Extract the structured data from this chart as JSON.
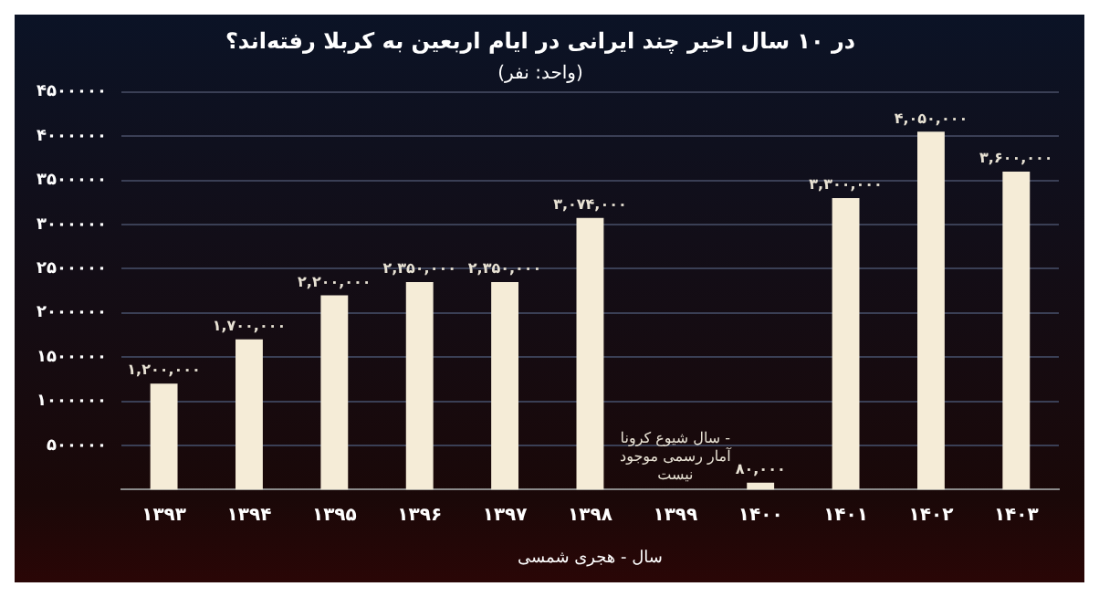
{
  "chart_data": {
    "type": "bar",
    "title": "در ۱۰ سال اخیر چند ایرانی در ایام اربعین به کربلا رفته‌اند؟",
    "subtitle": "(واحد: نفر)",
    "xlabel": "سال - هجری شمسی",
    "categories": [
      "۱۳۹۳",
      "۱۳۹۴",
      "۱۳۹۵",
      "۱۳۹۶",
      "۱۳۹۷",
      "۱۳۹۸",
      "۱۳۹۹",
      "۱۴۰۰",
      "۱۴۰۱",
      "۱۴۰۲",
      "۱۴۰۳"
    ],
    "values": [
      1200000,
      1700000,
      2200000,
      2350000,
      2350000,
      3074000,
      null,
      80000,
      3300000,
      4050000,
      3600000
    ],
    "value_labels": [
      "۱,۲۰۰,۰۰۰",
      "۱,۷۰۰,۰۰۰",
      "۲,۲۰۰,۰۰۰",
      "۲,۳۵۰,۰۰۰",
      "۲,۳۵۰,۰۰۰",
      "۳,۰۷۴,۰۰۰",
      null,
      "۸۰,۰۰۰",
      "۳,۳۰۰,۰۰۰",
      "۴,۰۵۰,۰۰۰",
      "۳,۶۰۰,۰۰۰"
    ],
    "color": "#f5ecd7",
    "ylim": [
      0,
      4500000
    ],
    "yticks": [
      {
        "value": 500000,
        "label": "۵۰۰۰۰۰"
      },
      {
        "value": 1000000,
        "label": "۱۰۰۰۰۰۰"
      },
      {
        "value": 1500000,
        "label": "۱۵۰۰۰۰۰"
      },
      {
        "value": 2000000,
        "label": "۲۰۰۰۰۰۰"
      },
      {
        "value": 2500000,
        "label": "۲۵۰۰۰۰۰"
      },
      {
        "value": 3000000,
        "label": "۳۰۰۰۰۰۰"
      },
      {
        "value": 3500000,
        "label": "۳۵۰۰۰۰۰"
      },
      {
        "value": 4000000,
        "label": "۴۰۰۰۰۰۰"
      },
      {
        "value": 4500000,
        "label": "۴۵۰۰۰۰۰"
      }
    ],
    "grid": "y",
    "annotations": [
      "سال شیوع کرونا - آمار رسمی موجود نیست"
    ]
  }
}
